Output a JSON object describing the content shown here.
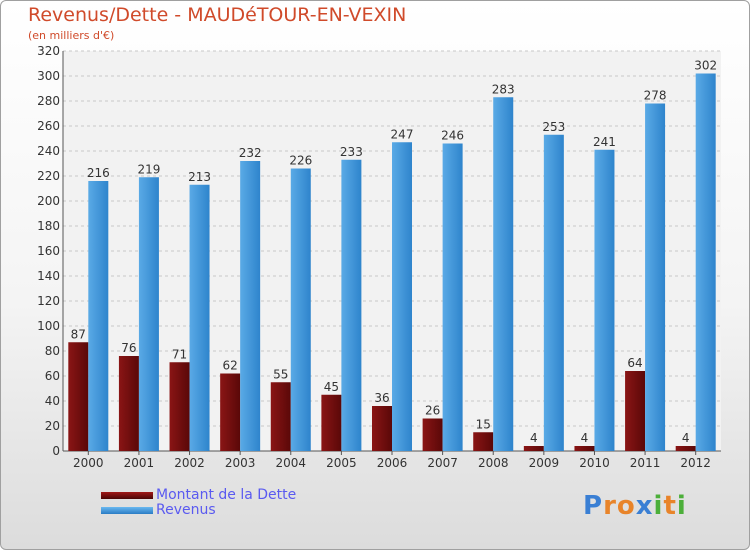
{
  "title": "Revenus/Dette - MAUDéTOUR-EN-VEXIN",
  "subtitle": "(en milliers d'€)",
  "legend": {
    "debt_label": "Montant de la Dette",
    "revenue_label": "Revenus"
  },
  "logo": {
    "text": "Proxiti",
    "letters": [
      "P",
      "r",
      "o",
      "x",
      "i",
      "t",
      "i"
    ],
    "letter_colors": [
      "#3a7fd4",
      "#e8842a",
      "#e8842a",
      "#3a7fd4",
      "#4caf3a",
      "#e8842a",
      "#4caf3a"
    ]
  },
  "colors": {
    "debt": "#7a1010",
    "revenue": "#3f96dc",
    "title": "#d04a2a",
    "legend_text": "#5a5af0"
  },
  "chart_data": {
    "type": "bar",
    "title": "Revenus/Dette - MAUDéTOUR-EN-VEXIN",
    "subtitle": "(en milliers d'€)",
    "categories": [
      "2000",
      "2001",
      "2002",
      "2003",
      "2004",
      "2005",
      "2006",
      "2007",
      "2008",
      "2009",
      "2010",
      "2011",
      "2012"
    ],
    "series": [
      {
        "name": "Montant de la Dette",
        "values": [
          87,
          76,
          71,
          62,
          55,
          45,
          36,
          26,
          15,
          4,
          4,
          64,
          4
        ]
      },
      {
        "name": "Revenus",
        "values": [
          216,
          219,
          213,
          232,
          226,
          233,
          247,
          246,
          283,
          253,
          241,
          278,
          302
        ]
      }
    ],
    "ylim": [
      0,
      320
    ],
    "yticks": [
      0,
      20,
      40,
      60,
      80,
      100,
      120,
      140,
      160,
      180,
      200,
      220,
      240,
      260,
      280,
      300,
      320
    ],
    "grid": true,
    "legend_position": "bottom-left"
  }
}
